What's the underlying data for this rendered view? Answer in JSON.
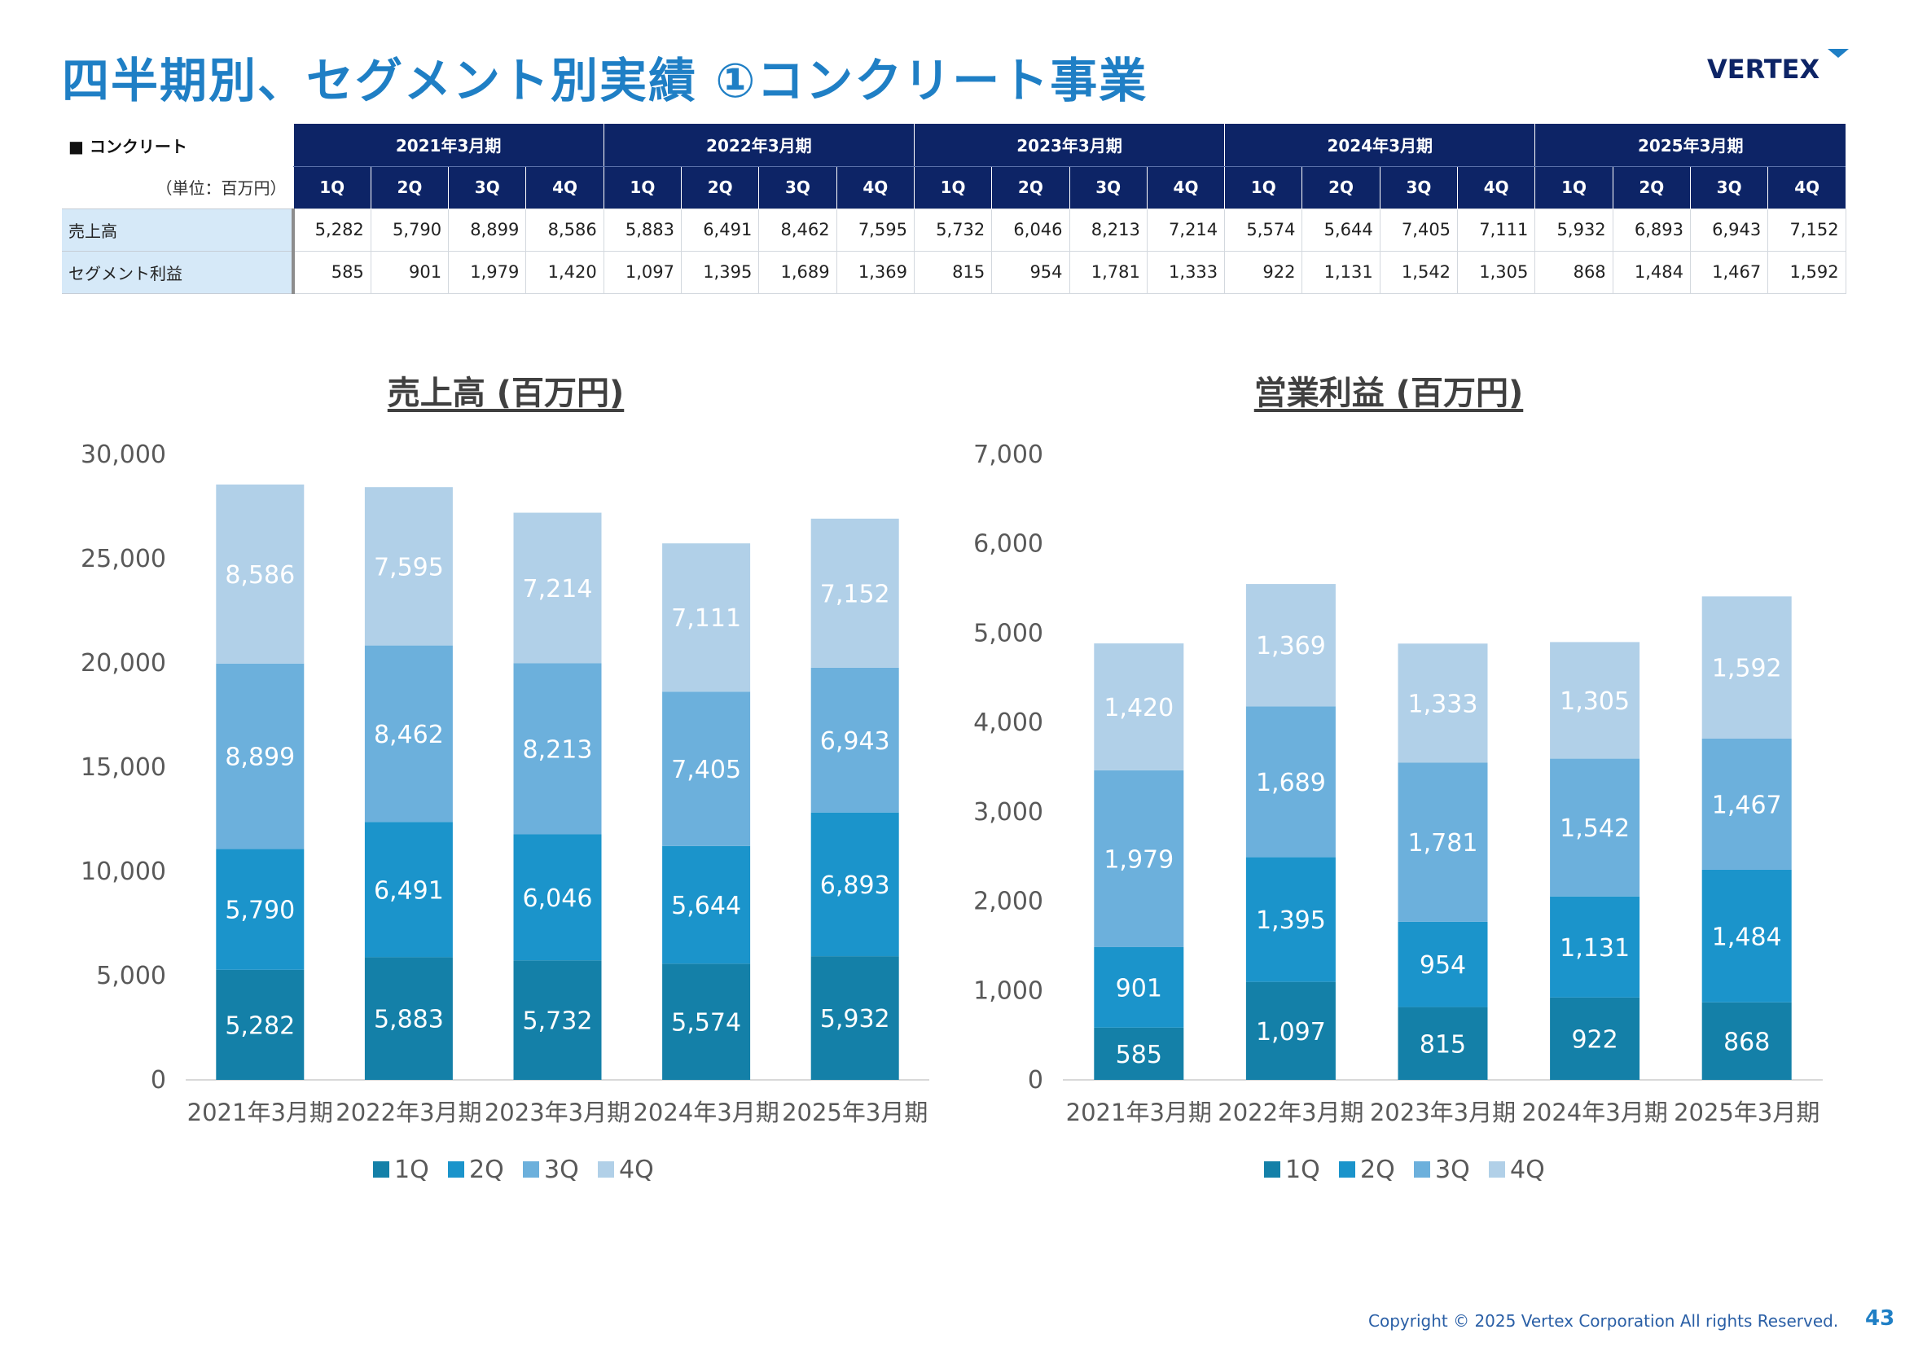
{
  "page": {
    "title": "四半期別、セグメント別実績 ①コンクリート事業",
    "logo_text": "VERTEX",
    "copyright": "Copyright © 2025 Vertex Corporation All rights Reserved.",
    "page_number": "43"
  },
  "table": {
    "segment_label": "■ コンクリート",
    "unit_label": "（単位：百万円）",
    "years": [
      "2021年3月期",
      "2022年3月期",
      "2023年3月期",
      "2024年3月期",
      "2025年3月期"
    ],
    "quarters": [
      "1Q",
      "2Q",
      "3Q",
      "4Q"
    ],
    "rows": [
      {
        "label": "売上高",
        "values": [
          "5,282",
          "5,790",
          "8,899",
          "8,586",
          "5,883",
          "6,491",
          "8,462",
          "7,595",
          "5,732",
          "6,046",
          "8,213",
          "7,214",
          "5,574",
          "5,644",
          "7,405",
          "7,111",
          "5,932",
          "6,893",
          "6,943",
          "7,152"
        ]
      },
      {
        "label": "セグメント利益",
        "values": [
          "585",
          "901",
          "1,979",
          "1,420",
          "1,097",
          "1,395",
          "1,689",
          "1,369",
          "815",
          "954",
          "1,781",
          "1,333",
          "922",
          "1,131",
          "1,542",
          "1,305",
          "868",
          "1,484",
          "1,467",
          "1,592"
        ]
      }
    ]
  },
  "colors": {
    "q1": "#1480a8",
    "q2": "#1b94cb",
    "q3": "#6cb0dc",
    "q4": "#b1d0e8",
    "title": "#1f7fc5",
    "header": "#0d2466"
  },
  "chart_data": [
    {
      "type": "bar",
      "stacked": true,
      "title": "売上高 (百万円)",
      "categories": [
        "2021年3月期",
        "2022年3月期",
        "2023年3月期",
        "2024年3月期",
        "2025年3月期"
      ],
      "ylim": [
        0,
        30000
      ],
      "yticks": [
        "0",
        "5,000",
        "10,000",
        "15,000",
        "20,000",
        "25,000",
        "30,000"
      ],
      "legend": "bottom",
      "series": [
        {
          "name": "1Q",
          "values": [
            5282,
            5883,
            5732,
            5574,
            5932
          ],
          "labels": [
            "5,282",
            "5,883",
            "5,732",
            "5,574",
            "5,932"
          ]
        },
        {
          "name": "2Q",
          "values": [
            5790,
            6491,
            6046,
            5644,
            6893
          ],
          "labels": [
            "5,790",
            "6,491",
            "6,046",
            "5,644",
            "6,893"
          ]
        },
        {
          "name": "3Q",
          "values": [
            8899,
            8462,
            8213,
            7405,
            6943
          ],
          "labels": [
            "8,899",
            "8,462",
            "8,213",
            "7,405",
            "6,943"
          ]
        },
        {
          "name": "4Q",
          "values": [
            8586,
            7595,
            7214,
            7111,
            7152
          ],
          "labels": [
            "8,586",
            "7,595",
            "7,214",
            "7,111",
            "7,152"
          ]
        }
      ]
    },
    {
      "type": "bar",
      "stacked": true,
      "title": "営業利益 (百万円)",
      "categories": [
        "2021年3月期",
        "2022年3月期",
        "2023年3月期",
        "2024年3月期",
        "2025年3月期"
      ],
      "ylim": [
        0,
        7000
      ],
      "yticks": [
        "0",
        "1,000",
        "2,000",
        "3,000",
        "4,000",
        "5,000",
        "6,000",
        "7,000"
      ],
      "legend": "bottom",
      "series": [
        {
          "name": "1Q",
          "values": [
            585,
            1097,
            815,
            922,
            868
          ],
          "labels": [
            "585",
            "1,097",
            "815",
            "922",
            "868"
          ]
        },
        {
          "name": "2Q",
          "values": [
            901,
            1395,
            954,
            1131,
            1484
          ],
          "labels": [
            "901",
            "1,395",
            "954",
            "1,131",
            "1,484"
          ]
        },
        {
          "name": "3Q",
          "values": [
            1979,
            1689,
            1781,
            1542,
            1467
          ],
          "labels": [
            "1,979",
            "1,689",
            "1,781",
            "1,542",
            "1,467"
          ]
        },
        {
          "name": "4Q",
          "values": [
            1420,
            1369,
            1333,
            1305,
            1592
          ],
          "labels": [
            "1,420",
            "1,369",
            "1,333",
            "1,305",
            "1,592"
          ]
        }
      ]
    }
  ]
}
